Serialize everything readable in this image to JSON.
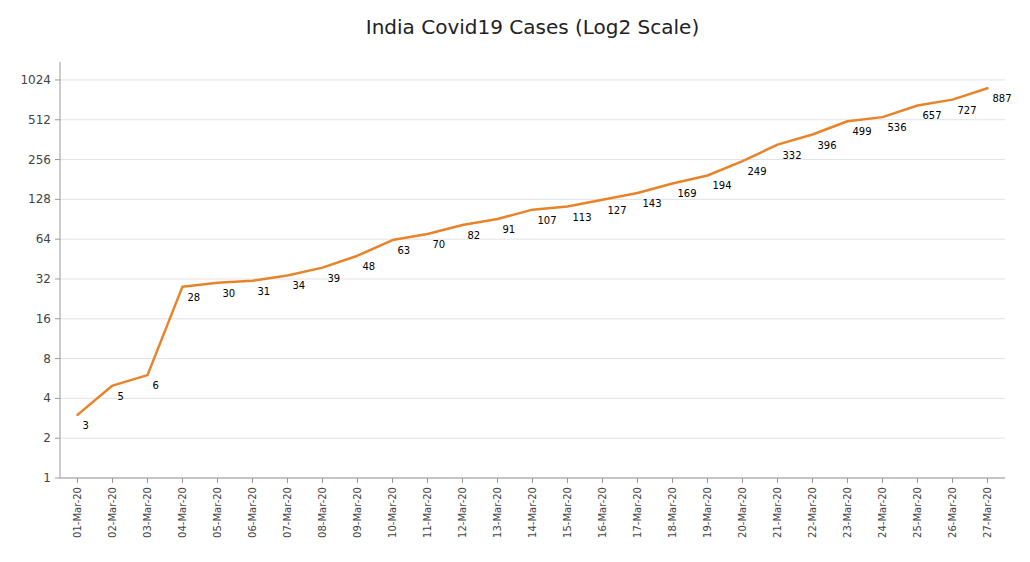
{
  "chart_data": {
    "type": "line",
    "title": "India Covid19 Cases (Log2 Scale)",
    "categories": [
      "01-Mar-20",
      "02-Mar-20",
      "03-Mar-20",
      "04-Mar-20",
      "05-Mar-20",
      "06-Mar-20",
      "07-Mar-20",
      "08-Mar-20",
      "09-Mar-20",
      "10-Mar-20",
      "11-Mar-20",
      "12-Mar-20",
      "13-Mar-20",
      "14-Mar-20",
      "15-Mar-20",
      "16-Mar-20",
      "17-Mar-20",
      "18-Mar-20",
      "19-Mar-20",
      "20-Mar-20",
      "21-Mar-20",
      "22-Mar-20",
      "23-Mar-20",
      "24-Mar-20",
      "25-Mar-20",
      "26-Mar-20",
      "27-Mar-20"
    ],
    "values": [
      3,
      5,
      6,
      28,
      30,
      31,
      34,
      39,
      48,
      63,
      70,
      82,
      91,
      107,
      113,
      127,
      143,
      169,
      194,
      249,
      332,
      396,
      499,
      536,
      657,
      727,
      887
    ],
    "color": "#E8832A",
    "log": "y",
    "ylim": [
      1,
      1400
    ],
    "yticks": [
      1,
      2,
      4,
      8,
      16,
      32,
      64,
      128,
      256,
      512,
      1024
    ],
    "grid": true,
    "data_labels": true
  }
}
